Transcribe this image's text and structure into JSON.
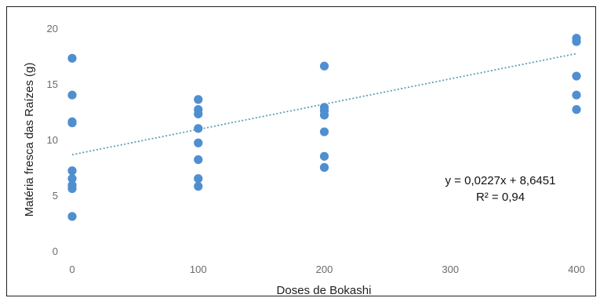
{
  "chart_data": {
    "type": "scatter",
    "title": "",
    "xlabel": "Doses de Bokashi",
    "ylabel": "Matéria fresca das Raízes (g)",
    "xlim": [
      0,
      400
    ],
    "ylim": [
      0,
      20
    ],
    "x_ticks": [
      "0",
      "100",
      "200",
      "300",
      "400"
    ],
    "y_ticks": [
      "0",
      "5",
      "10",
      "15",
      "20"
    ],
    "grid": false,
    "series": [
      {
        "color": "#4f8fd0",
        "points": [
          [
            0,
            17.3
          ],
          [
            0,
            14.0
          ],
          [
            0,
            11.6
          ],
          [
            0,
            11.5
          ],
          [
            0,
            7.2
          ],
          [
            0,
            6.5
          ],
          [
            0,
            5.9
          ],
          [
            0,
            5.6
          ],
          [
            0,
            3.1
          ],
          [
            100,
            13.6
          ],
          [
            100,
            12.7
          ],
          [
            100,
            12.3
          ],
          [
            100,
            11.0
          ],
          [
            100,
            9.7
          ],
          [
            100,
            8.2
          ],
          [
            100,
            6.5
          ],
          [
            100,
            5.8
          ],
          [
            200,
            16.6
          ],
          [
            200,
            12.9
          ],
          [
            200,
            12.6
          ],
          [
            200,
            12.2
          ],
          [
            200,
            10.7
          ],
          [
            200,
            8.5
          ],
          [
            200,
            7.5
          ],
          [
            400,
            19.1
          ],
          [
            400,
            18.8
          ],
          [
            400,
            15.7
          ],
          [
            400,
            14.0
          ],
          [
            400,
            12.7
          ]
        ]
      }
    ],
    "trendline": {
      "type": "linear",
      "slope": 0.0227,
      "intercept": 8.6451,
      "color": "#5aa0b4",
      "equation": "y = 0,0227x + 8,6451",
      "r2": "R² = 0,94"
    }
  }
}
